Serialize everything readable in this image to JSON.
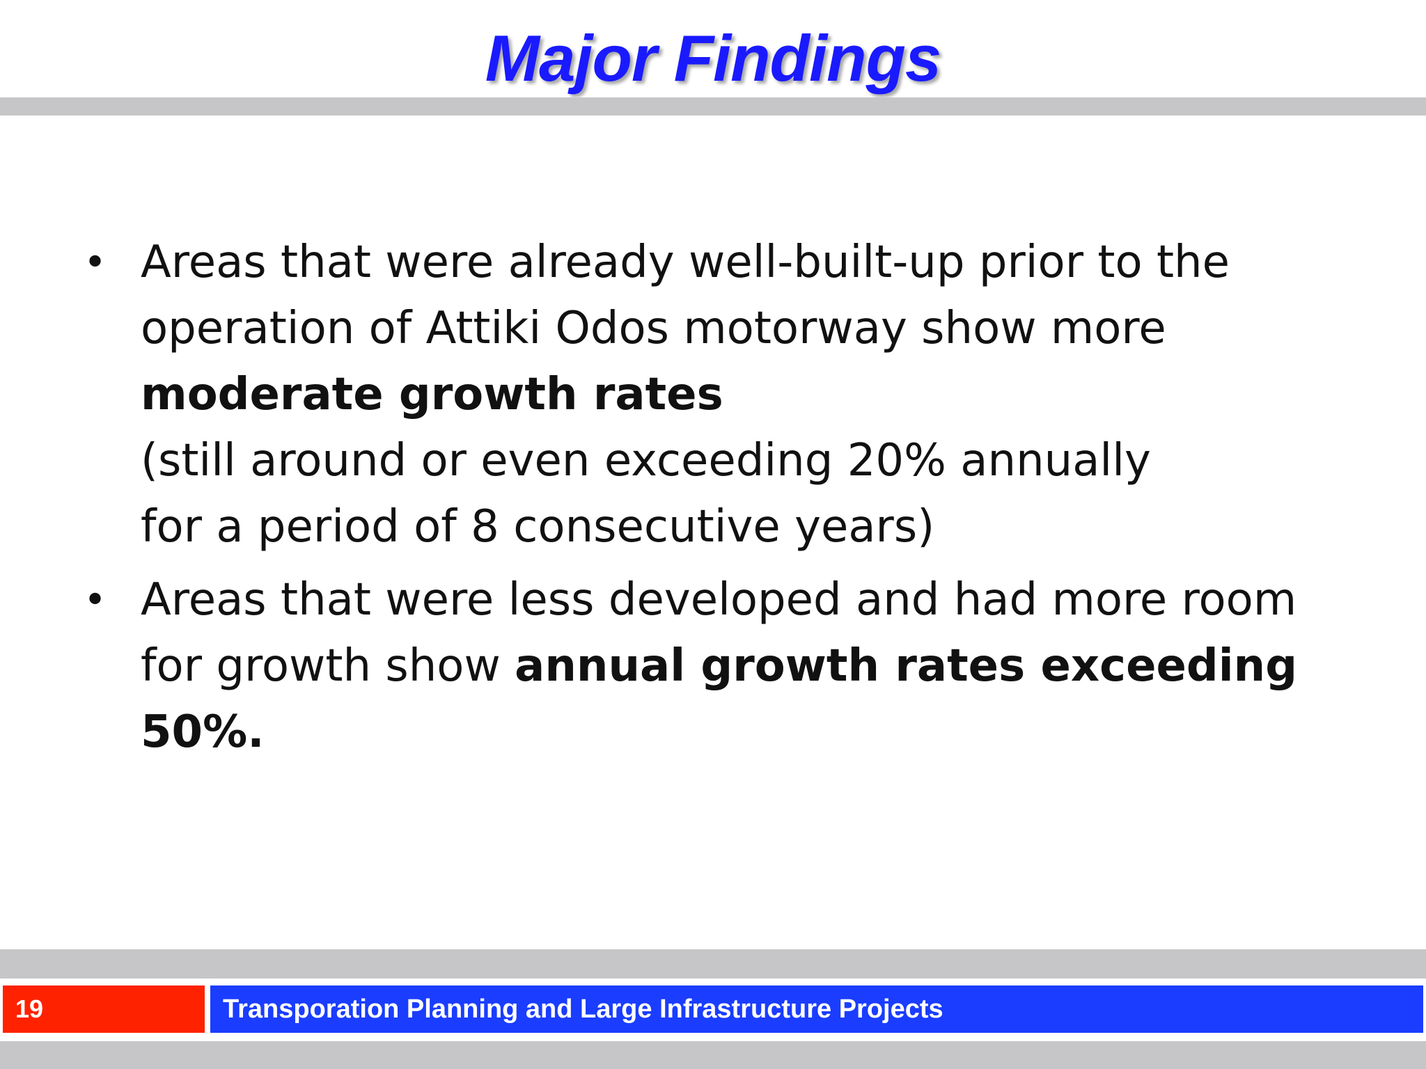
{
  "slide": {
    "title": "Major Findings",
    "bullets": [
      {
        "lines": [
          "Areas that were already well-built-up prior to the",
          "operation of Attiki Odos motorway show more",
          "moderate growth rates",
          "(still around or even exceeding 20% annually",
          "for a period of 8 consecutive years)"
        ]
      },
      {
        "lines": [
          "Areas that were less developed and had more room",
          "for growth show ",
          "annual growth rates exceeding",
          "50%."
        ]
      }
    ],
    "bullet_symbol": "•"
  },
  "footer": {
    "page_number": "19",
    "course_title": "Transporation Planning and Large Infrastructure Projects"
  },
  "colors": {
    "title": "#1a1aff",
    "bands": "#c6c6c8",
    "page_number_box": "#ff2200",
    "footer_title_box": "#1a3dff"
  }
}
